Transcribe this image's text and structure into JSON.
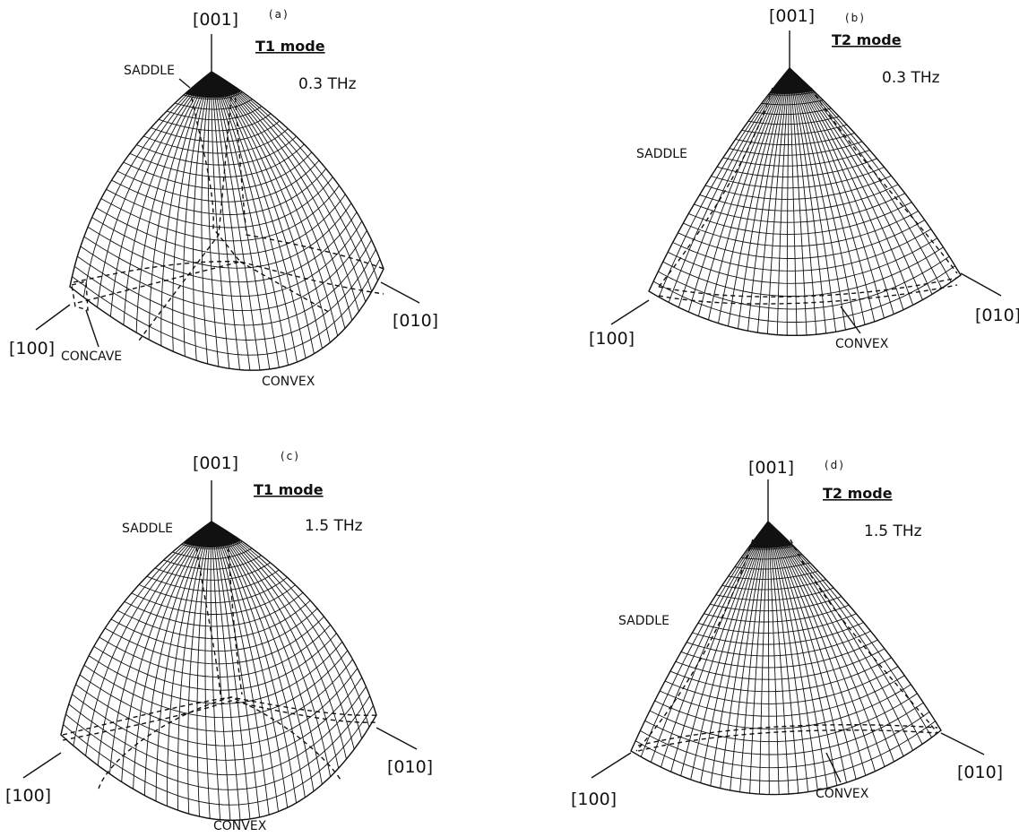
{
  "panels": [
    {
      "id": "a",
      "sub": "(a)",
      "mode": "T1 mode",
      "freq": "0.3 THz",
      "kind": "t1",
      "axes": {
        "top": "[001]",
        "left": "[100]",
        "right": "[010]"
      },
      "labels": {
        "saddle": "SADDLE",
        "concave": "CONCAVE",
        "convex": "CONVEX"
      }
    },
    {
      "id": "b",
      "sub": "(b)",
      "mode": "T2 mode",
      "freq": "0.3 THz",
      "kind": "t2",
      "axes": {
        "top": "[001]",
        "left": "[100]",
        "right": "[010]"
      },
      "labels": {
        "saddle": "SADDLE",
        "convex": "CONVEX"
      }
    },
    {
      "id": "c",
      "sub": "(c)",
      "mode": "T1 mode",
      "freq": "1.5 THz",
      "kind": "t1",
      "axes": {
        "top": "[001]",
        "left": "[100]",
        "right": "[010]"
      },
      "labels": {
        "saddle": "SADDLE",
        "convex": "CONVEX"
      }
    },
    {
      "id": "d",
      "sub": "(d)",
      "mode": "T2 mode",
      "freq": "1.5 THz",
      "kind": "t2",
      "axes": {
        "top": "[001]",
        "left": "[100]",
        "right": "[010]"
      },
      "labels": {
        "saddle": "SADDLE",
        "convex": "CONVEX"
      }
    }
  ]
}
